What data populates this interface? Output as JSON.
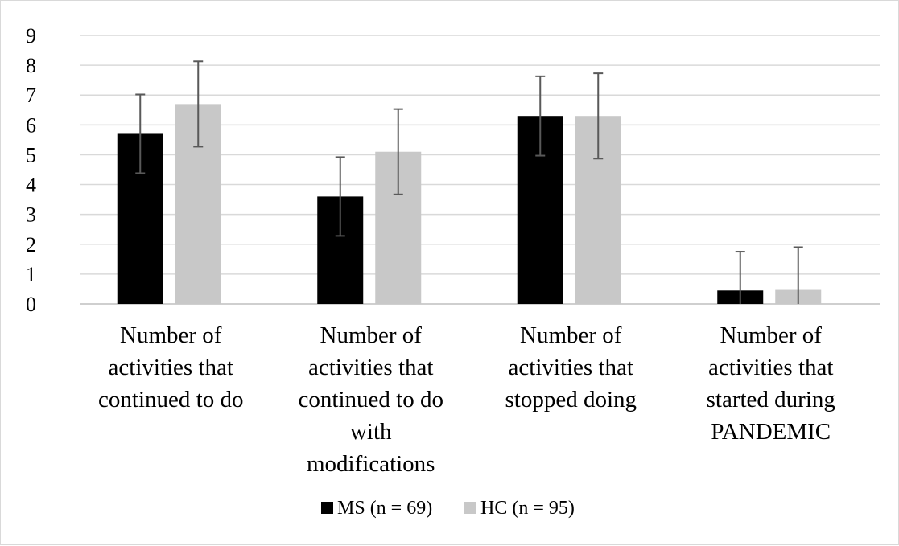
{
  "chart_data": {
    "type": "bar",
    "categories": [
      [
        "Number of",
        "activities that",
        "continued to do"
      ],
      [
        "Number of",
        "activities that",
        "continued to do",
        "with",
        "modifications"
      ],
      [
        "Number of",
        "activities that",
        "stopped doing"
      ],
      [
        "Number of",
        "activities that",
        "started during",
        "PANDEMIC"
      ]
    ],
    "series": [
      {
        "name": "MS (n = 69)",
        "color": "#000000",
        "values": [
          5.7,
          3.6,
          6.3,
          0.45
        ],
        "error": [
          1.32,
          1.32,
          1.33,
          1.3
        ]
      },
      {
        "name": "HC (n = 95)",
        "color": "#c8c8c8",
        "values": [
          6.7,
          5.1,
          6.3,
          0.47
        ],
        "error": [
          1.43,
          1.43,
          1.43,
          1.43
        ]
      }
    ],
    "ylim": [
      0,
      9
    ],
    "yticks": [
      "0",
      "1",
      "2",
      "3",
      "4",
      "5",
      "6",
      "7",
      "8",
      "9"
    ],
    "grid": true,
    "legend": "bottom"
  }
}
